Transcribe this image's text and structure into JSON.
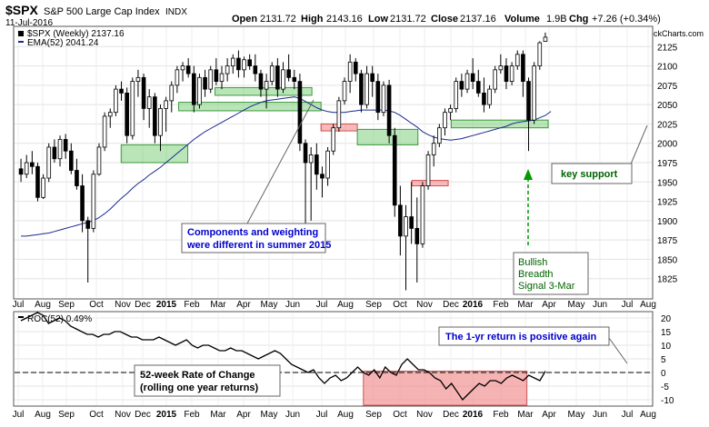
{
  "header": {
    "symbol": "$SPX",
    "name": "S&P 500 Large Cap Index",
    "exchange": "INDX",
    "date": "11-Jul-2016",
    "open_label": "Open",
    "open": "2131.72",
    "high_label": "High",
    "high": "2143.16",
    "low_label": "Low",
    "low": "2131.72",
    "close_label": "Close",
    "close": "2137.16",
    "volume_label": "Volume",
    "volume": "1.9B",
    "chg_label": "Chg",
    "chg": "+7.26 (+0.34%)",
    "watermark": "@ StockCharts.com"
  },
  "legend": {
    "price": "$SPX (Weekly) 2137.16",
    "ema": "EMA(52) 2041.24",
    "roc": "ROC(52) 0.49%"
  },
  "colors": {
    "up": "#ffffff",
    "down": "#000000",
    "ema": "#1a2a8c",
    "green_zone": "#7fd07f",
    "red_zone": "#f08080",
    "annotation_blue": "#0000cc",
    "annotation_green": "#006400",
    "arrow_green": "#009900"
  },
  "annotations": {
    "components": [
      "Components and weighting",
      "were different in summer 2015"
    ],
    "key_support": "key support",
    "bullish": [
      "Bullish",
      "Breadth",
      "Signal 3-Mar"
    ],
    "one_yr": "The 1-yr return is positive again",
    "roc_desc": [
      "52-week Rate of Change",
      "(rolling one year returns)"
    ]
  },
  "chart_data": [
    {
      "type": "candlestick",
      "title": "$SPX (Weekly)",
      "ylim": [
        1800,
        2150
      ],
      "y_ticks": [
        1825,
        1850,
        1875,
        1900,
        1925,
        1950,
        1975,
        2000,
        2025,
        2050,
        2075,
        2100,
        2125
      ],
      "x_tick_labels": [
        "Jul",
        "Aug",
        "Sep",
        "Oct",
        "Nov",
        "Dec",
        "2015",
        "Feb",
        "Mar",
        "Apr",
        "May",
        "Jun",
        "Jul",
        "Aug",
        "Sep",
        "Oct",
        "Nov",
        "Dec",
        "2016",
        "Feb",
        "Mar",
        "Apr",
        "May",
        "Jun",
        "Jul",
        "Aug"
      ],
      "grid": true,
      "series": [
        {
          "name": "$SPX (Weekly)",
          "ohlc": [
            [
              1967,
              1980,
              1950,
              1960
            ],
            [
              1960,
              1985,
              1955,
              1975
            ],
            [
              1975,
              1990,
              1960,
              1970
            ],
            [
              1970,
              1975,
              1925,
              1930
            ],
            [
              1930,
              1960,
              1928,
              1955
            ],
            [
              1955,
              2000,
              1950,
              1995
            ],
            [
              1995,
              2005,
              1975,
              1980
            ],
            [
              1980,
              2010,
              1970,
              2005
            ],
            [
              2005,
              2012,
              1980,
              1990
            ],
            [
              1990,
              2000,
              1960,
              1965
            ],
            [
              1965,
              1980,
              1940,
              1945
            ],
            [
              1945,
              1960,
              1885,
              1900
            ],
            [
              1900,
              1905,
              1820,
              1890
            ],
            [
              1890,
              1965,
              1885,
              1960
            ],
            [
              1960,
              2000,
              1958,
              1995
            ],
            [
              1995,
              2040,
              1990,
              2035
            ],
            [
              2035,
              2045,
              2020,
              2040
            ],
            [
              2040,
              2075,
              2035,
              2070
            ],
            [
              2070,
              2080,
              2055,
              2065
            ],
            [
              2065,
              2072,
              2000,
              2010
            ],
            [
              2010,
              2085,
              2005,
              2080
            ],
            [
              2080,
              2095,
              2060,
              2085
            ],
            [
              2085,
              2090,
              2030,
              2045
            ],
            [
              2045,
              2070,
              2020,
              2060
            ],
            [
              2060,
              2065,
              2000,
              2010
            ],
            [
              2010,
              2050,
              1990,
              2045
            ],
            [
              2045,
              2060,
              2015,
              2055
            ],
            [
              2055,
              2080,
              2040,
              2075
            ],
            [
              2075,
              2100,
              2065,
              2095
            ],
            [
              2095,
              2105,
              2080,
              2100
            ],
            [
              2100,
              2110,
              2085,
              2090
            ],
            [
              2090,
              2100,
              2040,
              2050
            ],
            [
              2050,
              2090,
              2045,
              2085
            ],
            [
              2085,
              2095,
              2060,
              2070
            ],
            [
              2070,
              2100,
              2065,
              2095
            ],
            [
              2095,
              2110,
              2075,
              2080
            ],
            [
              2080,
              2100,
              2070,
              2090
            ],
            [
              2090,
              2110,
              2080,
              2100
            ],
            [
              2100,
              2115,
              2090,
              2110
            ],
            [
              2110,
              2120,
              2085,
              2095
            ],
            [
              2095,
              2112,
              2085,
              2108
            ],
            [
              2108,
              2115,
              2095,
              2100
            ],
            [
              2100,
              2115,
              2080,
              2090
            ],
            [
              2090,
              2095,
              2060,
              2070
            ],
            [
              2070,
              2090,
              2045,
              2080
            ],
            [
              2080,
              2105,
              2075,
              2100
            ],
            [
              2100,
              2110,
              2060,
              2070
            ],
            [
              2070,
              2105,
              2065,
              2095
            ],
            [
              2095,
              2115,
              2080,
              2085
            ],
            [
              2085,
              2095,
              2070,
              2080
            ],
            [
              2080,
              2090,
              1990,
              2000
            ],
            [
              2000,
              2005,
              1870,
              1975
            ],
            [
              1975,
              1995,
              1900,
              1985
            ],
            [
              1985,
              2000,
              1940,
              1960
            ],
            [
              1960,
              1970,
              1930,
              1955
            ],
            [
              1955,
              1995,
              1945,
              1990
            ],
            [
              1990,
              2025,
              1985,
              2020
            ],
            [
              2020,
              2060,
              2015,
              2055
            ],
            [
              2055,
              2085,
              2050,
              2080
            ],
            [
              2080,
              2115,
              2065,
              2105
            ],
            [
              2105,
              2110,
              2080,
              2090
            ],
            [
              2090,
              2095,
              2040,
              2050
            ],
            [
              2050,
              2100,
              2045,
              2090
            ],
            [
              2090,
              2100,
              2060,
              2080
            ],
            [
              2080,
              2090,
              2030,
              2040
            ],
            [
              2040,
              2080,
              2035,
              2075
            ],
            [
              2075,
              2082,
              2000,
              2010
            ],
            [
              2010,
              2020,
              1905,
              1920
            ],
            [
              1920,
              1945,
              1855,
              1880
            ],
            [
              1880,
              1920,
              1810,
              1905
            ],
            [
              1905,
              1950,
              1870,
              1890
            ],
            [
              1890,
              1930,
              1820,
              1870
            ],
            [
              1870,
              1950,
              1865,
              1945
            ],
            [
              1945,
              1990,
              1940,
              1985
            ],
            [
              1985,
              2010,
              1970,
              2000
            ],
            [
              2000,
              2025,
              1995,
              2020
            ],
            [
              2020,
              2045,
              2010,
              2040
            ],
            [
              2040,
              2050,
              2030,
              2045
            ],
            [
              2045,
              2085,
              2040,
              2080
            ],
            [
              2080,
              2090,
              2060,
              2070
            ],
            [
              2070,
              2095,
              2065,
              2090
            ],
            [
              2090,
              2110,
              2070,
              2080
            ],
            [
              2080,
              2095,
              2060,
              2065
            ],
            [
              2065,
              2085,
              2040,
              2050
            ],
            [
              2050,
              2075,
              2045,
              2070
            ],
            [
              2070,
              2100,
              2065,
              2095
            ],
            [
              2095,
              2115,
              2090,
              2100
            ],
            [
              2100,
              2110,
              2070,
              2080
            ],
            [
              2080,
              2105,
              2075,
              2100
            ],
            [
              2100,
              2120,
              2095,
              2115
            ],
            [
              2115,
              2120,
              2060,
              2080
            ],
            [
              2080,
              2085,
              1990,
              2030
            ],
            [
              2030,
              2105,
              2025,
              2100
            ],
            [
              2100,
              2132,
              2095,
              2130
            ],
            [
              2131.72,
              2143.16,
              2131.72,
              2137.16
            ]
          ]
        },
        {
          "name": "EMA(52)",
          "values": [
            1880,
            1880,
            1881,
            1882,
            1883,
            1884,
            1886,
            1888,
            1890,
            1892,
            1894,
            1896,
            1898,
            1900,
            1904,
            1909,
            1915,
            1922,
            1929,
            1935,
            1942,
            1948,
            1953,
            1959,
            1964,
            1969,
            1975,
            1981,
            1987,
            1993,
            1999,
            2005,
            2010,
            2015,
            2019,
            2023,
            2027,
            2031,
            2035,
            2039,
            2043,
            2047,
            2050,
            2053,
            2055,
            2056,
            2057,
            2058,
            2059,
            2060,
            2058,
            2054,
            2050,
            2046,
            2043,
            2041,
            2040,
            2040,
            2040,
            2041,
            2042,
            2043,
            2043,
            2043,
            2043,
            2043,
            2042,
            2040,
            2036,
            2031,
            2026,
            2021,
            2015,
            2011,
            2008,
            2006,
            2005,
            2004,
            2005,
            2006,
            2008,
            2010,
            2012,
            2014,
            2016,
            2018,
            2020,
            2022,
            2025,
            2027,
            2028,
            2029,
            2030,
            2033,
            2036,
            2041.24
          ]
        }
      ],
      "zones": [
        {
          "kind": "support",
          "y": [
            1975,
            1998
          ],
          "week": [
            34,
            56
          ]
        },
        {
          "kind": "support",
          "y": [
            2042,
            2053
          ],
          "week": [
            53,
            100
          ]
        },
        {
          "kind": "support",
          "y": [
            2062,
            2072
          ],
          "week": [
            65,
            97
          ]
        },
        {
          "kind": "resistance",
          "y": [
            2016,
            2025
          ],
          "week": [
            100,
            112
          ]
        },
        {
          "kind": "support",
          "y": [
            1998,
            2018
          ],
          "week": [
            112,
            132
          ]
        },
        {
          "kind": "resistance",
          "y": [
            1945,
            1952
          ],
          "week": [
            130,
            142
          ]
        },
        {
          "kind": "support",
          "y": [
            2020,
            2030
          ],
          "week": [
            143,
            175
          ]
        }
      ]
    },
    {
      "type": "line",
      "title": "ROC(52)",
      "ylim": [
        -12,
        22
      ],
      "y_ticks": [
        -10,
        -5,
        0,
        5,
        10,
        15,
        20
      ],
      "x_tick_labels": [
        "Jul",
        "Aug",
        "Sep",
        "Oct",
        "Nov",
        "Dec",
        "2015",
        "Feb",
        "Mar",
        "Apr",
        "May",
        "Jun",
        "Jul",
        "Aug",
        "Sep",
        "Oct",
        "Nov",
        "Dec",
        "2016",
        "Feb",
        "Mar",
        "Apr",
        "May",
        "Jun",
        "Jul",
        "Aug"
      ],
      "series": [
        {
          "name": "ROC(52)",
          "values": [
            19,
            20,
            21,
            22,
            21,
            18,
            19,
            20,
            19,
            17,
            16,
            15,
            14,
            14,
            13,
            14,
            14,
            15,
            15,
            14,
            13,
            13,
            12,
            12,
            12,
            13,
            12,
            11,
            10,
            11,
            12,
            10,
            9,
            10,
            10,
            9,
            8,
            8,
            9,
            8,
            8,
            7,
            6,
            5,
            6,
            7,
            8,
            7,
            5,
            3,
            2,
            1,
            0,
            1,
            -2,
            -4,
            -2,
            -1,
            -3,
            -2,
            0,
            2,
            0,
            -1,
            1,
            -2,
            2,
            0,
            -1,
            3,
            5,
            3,
            1,
            1,
            0,
            -2,
            -3,
            -6,
            -4,
            -7,
            -10,
            -8,
            -6,
            -4,
            -5,
            -3,
            -3,
            -4,
            -2,
            -1,
            -2,
            -3,
            -1,
            -2,
            -3,
            0.49
          ]
        }
      ],
      "zones": [
        {
          "kind": "negative",
          "y": [
            -12,
            0.5
          ],
          "week": [
            114,
            168
          ]
        }
      ]
    }
  ]
}
